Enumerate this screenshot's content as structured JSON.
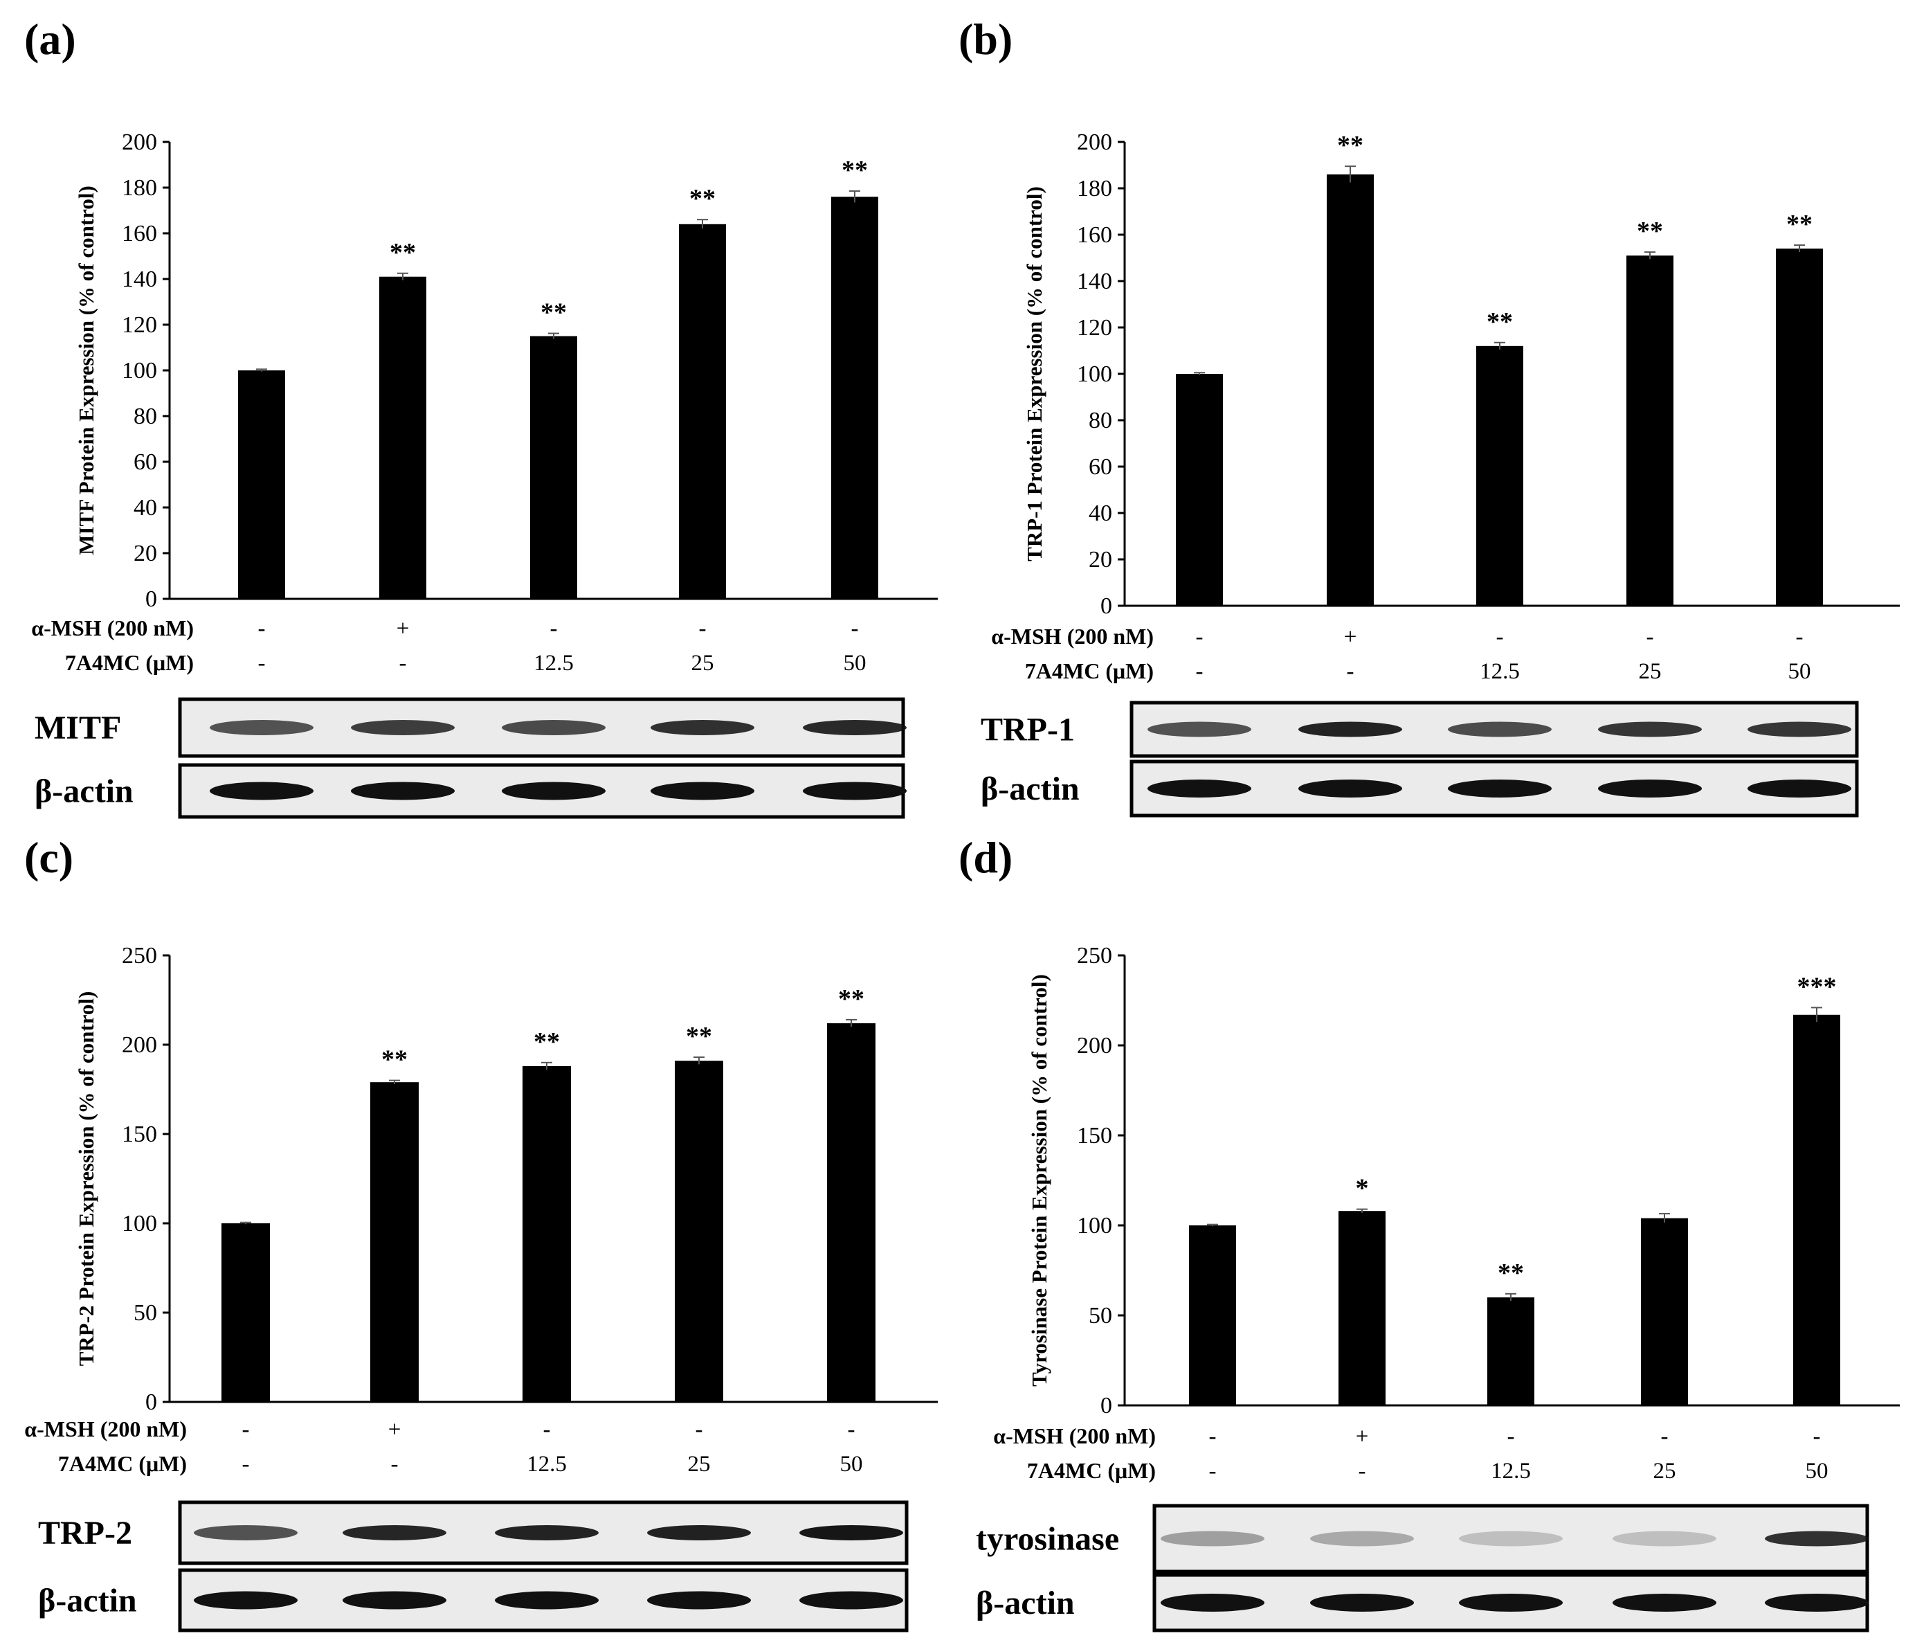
{
  "chart_data": [
    {
      "type": "bar",
      "panel_label": "(a)",
      "ylabel": "MITF Protein Expression (% of control)",
      "ylim": [
        0,
        200
      ],
      "yticks": [
        0,
        20,
        40,
        60,
        80,
        100,
        120,
        140,
        160,
        180,
        200
      ],
      "values": [
        100,
        141,
        115,
        164,
        176
      ],
      "errors": [
        0.5,
        1.5,
        1.2,
        2,
        2.5
      ],
      "significance": [
        "",
        "**",
        "**",
        "**",
        "**"
      ],
      "treatments": [
        {
          "label": "α-MSH (200 nM)",
          "values": [
            "-",
            "+",
            "-",
            "-",
            "-"
          ]
        },
        {
          "label": "7A4MC (μM)",
          "values": [
            "-",
            "-",
            "12.5",
            "25",
            "50"
          ]
        }
      ],
      "blot_labels": [
        "MITF",
        "β-actin"
      ]
    },
    {
      "type": "bar",
      "panel_label": "(b)",
      "ylabel": "TRP-1 Protein Expression (% of control)",
      "ylim": [
        0,
        200
      ],
      "yticks": [
        0,
        20,
        40,
        60,
        80,
        100,
        120,
        140,
        160,
        180,
        200
      ],
      "values": [
        100,
        186,
        112,
        151,
        154
      ],
      "errors": [
        0.5,
        3.5,
        1.5,
        1.5,
        1.5
      ],
      "significance": [
        "",
        "**",
        "**",
        "**",
        "**"
      ],
      "treatments": [
        {
          "label": "α-MSH (200 nM)",
          "values": [
            "-",
            "+",
            "-",
            "-",
            "-"
          ]
        },
        {
          "label": "7A4MC (μM)",
          "values": [
            "-",
            "-",
            "12.5",
            "25",
            "50"
          ]
        }
      ],
      "blot_labels": [
        "TRP-1",
        "β-actin"
      ]
    },
    {
      "type": "bar",
      "panel_label": "(c)",
      "ylabel": "TRP-2 Protein Expression (% of control)",
      "ylim": [
        0,
        250
      ],
      "yticks": [
        0,
        50,
        100,
        150,
        200,
        250
      ],
      "values": [
        100,
        179,
        188,
        191,
        212
      ],
      "errors": [
        0.5,
        1,
        2,
        2,
        2
      ],
      "significance": [
        "",
        "**",
        "**",
        "**",
        "**"
      ],
      "treatments": [
        {
          "label": "α-MSH (200 nM)",
          "values": [
            "-",
            "+",
            "-",
            "-",
            "-"
          ]
        },
        {
          "label": "7A4MC (μM)",
          "values": [
            "-",
            "-",
            "12.5",
            "25",
            "50"
          ]
        }
      ],
      "blot_labels": [
        "TRP-2",
        "β-actin"
      ]
    },
    {
      "type": "bar",
      "panel_label": "(d)",
      "ylabel": "Tyrosinase Protein Expression (% of control)",
      "ylim": [
        0,
        250
      ],
      "yticks": [
        0,
        50,
        100,
        150,
        200,
        250
      ],
      "values": [
        100,
        108,
        60,
        104,
        217
      ],
      "errors": [
        0.5,
        1,
        2,
        2.5,
        4
      ],
      "significance": [
        "",
        "*",
        "**",
        "",
        "***"
      ],
      "treatments": [
        {
          "label": "α-MSH (200 nM)",
          "values": [
            "-",
            "+",
            "-",
            "-",
            "-"
          ]
        },
        {
          "label": "7A4MC (μM)",
          "values": [
            "-",
            "-",
            "12.5",
            "25",
            "50"
          ]
        }
      ],
      "blot_labels": [
        "tyrosinase",
        "β-actin"
      ]
    }
  ]
}
